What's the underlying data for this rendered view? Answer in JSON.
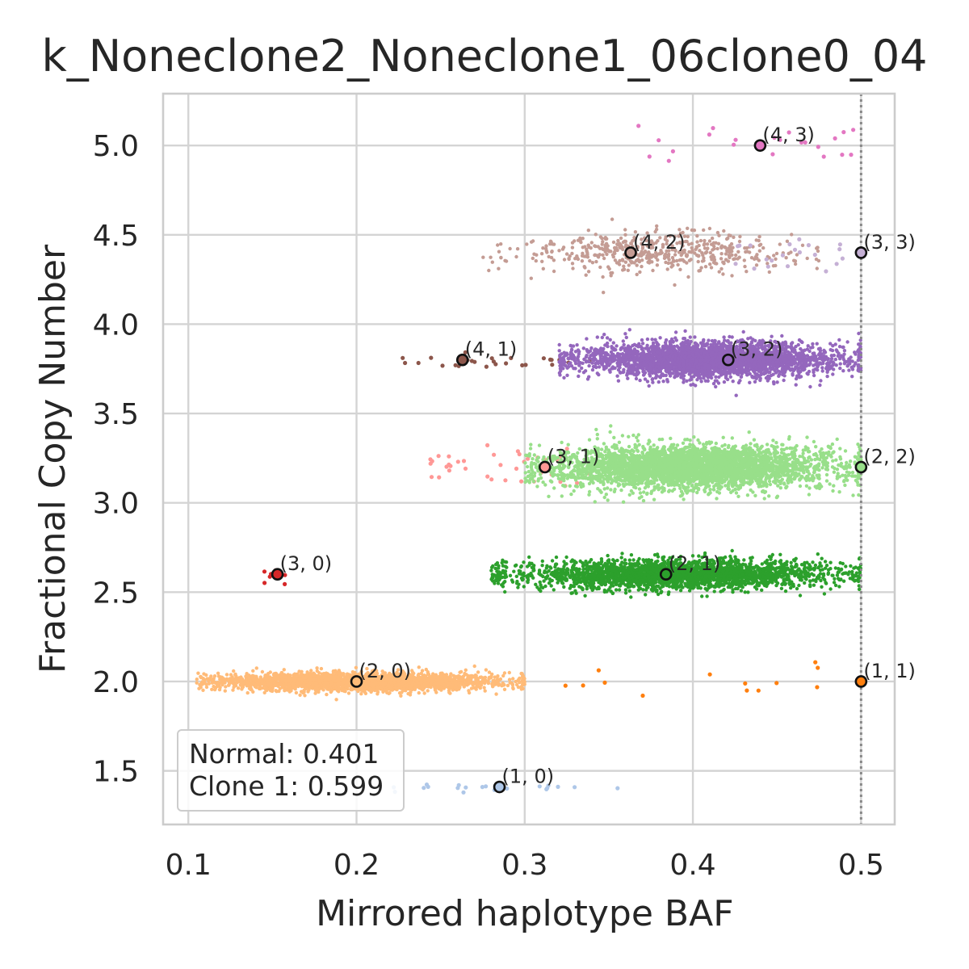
{
  "chart_data": {
    "type": "scatter",
    "title": "k_Noneclone2_Noneclone1_06clone0_04",
    "xlabel": "Mirrored haplotype BAF",
    "ylabel": "Fractional Copy Number",
    "xlim": [
      0.085,
      0.52
    ],
    "ylim": [
      1.2,
      5.29
    ],
    "xticks": [
      0.1,
      0.2,
      0.3,
      0.4,
      0.5
    ],
    "xtick_labels": [
      "0.1",
      "0.2",
      "0.3",
      "0.4",
      "0.5"
    ],
    "yticks": [
      1.5,
      2.0,
      2.5,
      3.0,
      3.5,
      4.0,
      4.5,
      5.0
    ],
    "ytick_labels": [
      "1.5",
      "2.0",
      "2.5",
      "3.0",
      "3.5",
      "4.0",
      "4.5",
      "5.0"
    ],
    "grid": true,
    "reference_line": {
      "x": 0.5,
      "style": "dotted",
      "color": "#888888"
    },
    "legend_box": {
      "placement": "lower-left",
      "lines": [
        "Normal: 0.401",
        "Clone 1: 0.599"
      ]
    },
    "clusters": [
      {
        "label": "(1, 0)",
        "color": "#aec7e8",
        "center": [
          0.285,
          1.41
        ],
        "x_range": [
          0.22,
          0.36
        ],
        "y_sd": 0.01,
        "count": 22
      },
      {
        "label": "(2, 0)",
        "color": "#ffbb78",
        "center": [
          0.2,
          2.0
        ],
        "x_range": [
          0.105,
          0.3
        ],
        "y_sd": 0.025,
        "count": 2600
      },
      {
        "label": "(1, 1)",
        "color": "#ff7f0e",
        "center": [
          0.5,
          2.0
        ],
        "x_range": [
          0.32,
          0.5
        ],
        "y_sd": 0.05,
        "count": 14
      },
      {
        "label": "(3, 0)",
        "color": "#d62728",
        "center": [
          0.153,
          2.6
        ],
        "x_range": [
          0.145,
          0.16
        ],
        "y_sd": 0.03,
        "count": 8
      },
      {
        "label": "(2, 1)",
        "color": "#2ca02c",
        "center": [
          0.384,
          2.6
        ],
        "x_range": [
          0.28,
          0.5
        ],
        "y_sd": 0.04,
        "count": 2600
      },
      {
        "label": "(3, 1)",
        "color": "#ff9896",
        "center": [
          0.312,
          3.2
        ],
        "x_range": [
          0.24,
          0.34
        ],
        "y_sd": 0.06,
        "count": 40
      },
      {
        "label": "(2, 2)",
        "color": "#98df8a",
        "center": [
          0.5,
          3.2
        ],
        "x_range": [
          0.3,
          0.5
        ],
        "y_sd": 0.06,
        "count": 3600
      },
      {
        "label": "(4, 1)",
        "color": "#8c564b",
        "center": [
          0.263,
          3.8
        ],
        "x_range": [
          0.22,
          0.35
        ],
        "y_sd": 0.03,
        "count": 26
      },
      {
        "label": "(3, 2)",
        "color": "#9467bd",
        "center": [
          0.421,
          3.8
        ],
        "x_range": [
          0.32,
          0.5
        ],
        "y_sd": 0.05,
        "count": 3000
      },
      {
        "label": "(4, 2)",
        "color": "#c49c94",
        "center": [
          0.363,
          4.4
        ],
        "x_range": [
          0.275,
          0.475
        ],
        "y_sd": 0.06,
        "count": 520
      },
      {
        "label": "(3, 3)",
        "color": "#c5b0d5",
        "center": [
          0.5,
          4.4
        ],
        "x_range": [
          0.42,
          0.5
        ],
        "y_sd": 0.05,
        "count": 22
      },
      {
        "label": "(4, 3)",
        "color": "#e377c2",
        "center": [
          0.44,
          5.0
        ],
        "x_range": [
          0.36,
          0.5
        ],
        "y_sd": 0.06,
        "count": 22
      }
    ]
  }
}
